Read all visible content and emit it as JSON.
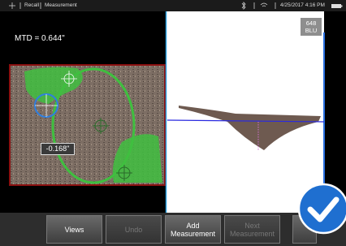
{
  "status_bar": {
    "items": [
      "Recall",
      "Measurement"
    ],
    "datetime": "4/25/2017 4:16 PM"
  },
  "left_view": {
    "measurement": "MTD = 0.644\"",
    "depth_label": "-0.168\""
  },
  "right_view": {
    "badge": [
      "648",
      "BLU"
    ]
  },
  "toolbar": {
    "buttons": [
      "Views",
      "Undo",
      "Add Measurement",
      "Next Measurement"
    ]
  }
}
